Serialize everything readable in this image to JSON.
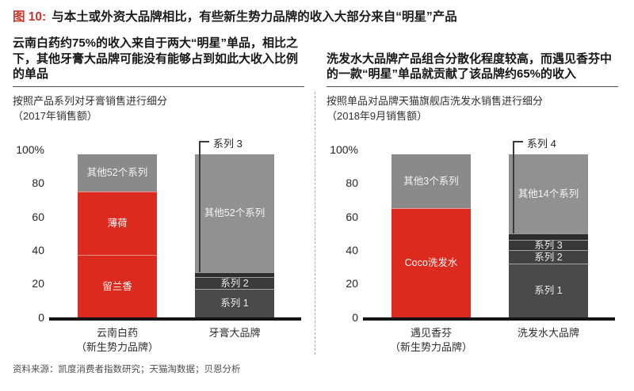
{
  "title": {
    "figure_label": "图 10:",
    "text": "与本土或外资大品牌相比，有些新生势力品牌的收入大部分来自“明星”产品"
  },
  "footer": {
    "source": "资料来源：凯度消费者指数研究；天猫淘数据；贝恩分析"
  },
  "colors": {
    "title_red": "#c9352a",
    "bar_red": "#dd2a1e",
    "light_gray": "#8a8a8a",
    "big_brand_gray": "#919191",
    "dark_gray": "#4a4a4a",
    "axis_black": "#151515"
  },
  "chart_data": {
    "type": "bar",
    "stacked": true,
    "unit": "%",
    "ylim": [
      0,
      100
    ],
    "grid": false,
    "charts": [
      {
        "heading": "云南白药约75%的收入来自于两大“明星”单品，相比之下，其他牙膏大品牌可能没有能够占到如此大收入比例的单品",
        "subtitle": [
          "按照产品系列对牙膏销售进行细分",
          "（2017年销售额）"
        ],
        "y_ticks": [
          {
            "label": "100%",
            "value": 100
          },
          {
            "label": "80",
            "value": 80
          },
          {
            "label": "60",
            "value": 60
          },
          {
            "label": "40",
            "value": 40
          },
          {
            "label": "20",
            "value": 20
          },
          {
            "label": "0",
            "value": 0
          }
        ],
        "bars": [
          {
            "x_label": [
              "云南白药",
              "（新生势力品牌）"
            ],
            "segments": [
              {
                "name": "留兰香",
                "value": 37,
                "color": "#dd2a1e",
                "label_color": "#ffffff"
              },
              {
                "name": "薄荷",
                "value": 38,
                "color": "#dd2a1e",
                "label_color": "#ffffff"
              },
              {
                "name": "其他52个系列",
                "value": 22,
                "color": "#8a8a8a",
                "label_color": "#f4f4f4"
              }
            ]
          },
          {
            "x_label": [
              "牙膏大品牌"
            ],
            "segments": [
              {
                "name": "系列 1",
                "value": 17,
                "color": "#4a4a4a",
                "label_color": "#ebebeb"
              },
              {
                "name": "系列 2",
                "value": 7,
                "color": "#3b3b3b",
                "label_color": "#ebebeb"
              },
              {
                "name": "系列 3",
                "value": 3,
                "color": "#2d2d2d",
                "show_label": false
              },
              {
                "name": "其他52个系列",
                "value": 70,
                "color": "#919191",
                "label_color": "#f4f4f4"
              }
            ],
            "annotation": {
              "label": "系列 3",
              "segment_index": 2
            }
          }
        ]
      },
      {
        "heading": "洗发水大品牌产品组合分散化程度较高，而遇见香芬中的一款“明星”单品就贡献了该品牌约65%的收入",
        "subtitle": [
          "按照单品对品牌天猫旗舰店洗发水销售进行细分",
          "（2018年9月销售额）"
        ],
        "y_ticks": [
          {
            "label": "100%",
            "value": 100
          },
          {
            "label": "80",
            "value": 80
          },
          {
            "label": "60",
            "value": 60
          },
          {
            "label": "40",
            "value": 40
          },
          {
            "label": "20",
            "value": 20
          },
          {
            "label": "0",
            "value": 0
          }
        ],
        "bars": [
          {
            "x_label": [
              "遇见香芬",
              "（新生势力品牌）"
            ],
            "segments": [
              {
                "name": "Coco洗发水",
                "value": 65,
                "color": "#dd2a1e",
                "label_color": "#ffffff"
              },
              {
                "name": "其他3个系列",
                "value": 32,
                "color": "#8a8a8a",
                "label_color": "#f4f4f4"
              }
            ]
          },
          {
            "x_label": [
              "洗发水大品牌"
            ],
            "segments": [
              {
                "name": "系列 1",
                "value": 32,
                "color": "#4a4a4a",
                "label_color": "#ebebeb"
              },
              {
                "name": "系列 2",
                "value": 8,
                "color": "#424242",
                "label_color": "#ebebeb"
              },
              {
                "name": "系列 3",
                "value": 6,
                "color": "#383838",
                "label_color": "#ebebeb"
              },
              {
                "name": "系列 4",
                "value": 4,
                "color": "#2d2d2d",
                "show_label": false
              },
              {
                "name": "其他14个系列",
                "value": 47,
                "color": "#919191",
                "label_color": "#f4f4f4"
              }
            ],
            "annotation": {
              "label": "系列 4",
              "segment_index": 3
            }
          }
        ]
      }
    ]
  }
}
